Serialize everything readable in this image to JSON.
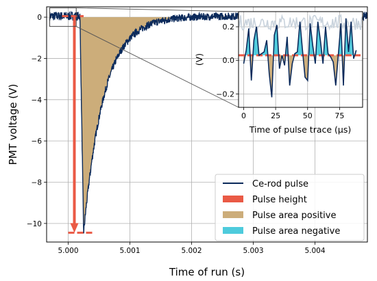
{
  "chart_data": [
    {
      "type": "line",
      "xlabel": "Time of run (s)",
      "ylabel": "PMT voltage (V)",
      "xlim": [
        4.99965,
        5.00485
      ],
      "ylim": [
        -10.9,
        0.5
      ],
      "xticks": [
        5.0,
        5.001,
        5.002,
        5.003,
        5.004
      ],
      "xtick_labels": [
        "5.000",
        "5.001",
        "5.002",
        "5.003",
        "5.004"
      ],
      "yticks": [
        0,
        -2,
        -4,
        -6,
        -8,
        -10
      ],
      "ytick_labels": [
        "0",
        "−2",
        "−4",
        "−6",
        "−8",
        "−10"
      ],
      "grid": true,
      "baseline_noise_y": 0.05,
      "pulse_start_x": 5.00019,
      "pulse_peak_x": 5.00025,
      "pulse_peak_y": -10.45,
      "decay_tau_s": 0.00033,
      "pulse_height": {
        "x": 5.0001,
        "y_top": 0.05,
        "y_bottom": -10.45,
        "baseline_x": [
          4.9999,
          5.00025
        ],
        "floor_x": [
          5.0,
          5.0004
        ]
      },
      "series": [
        {
          "name": "Ce-rod pulse",
          "color": "#0b2a5b",
          "style": "line"
        },
        {
          "name": "Pulse height",
          "color": "#ea5a45",
          "style": "patch"
        },
        {
          "name": "Pulse area positive",
          "color": "#ccad7a",
          "style": "patch"
        },
        {
          "name": "Pulse area negative",
          "color": "#4ecbdc",
          "style": "patch"
        }
      ],
      "zoom_box": {
        "x": [
          4.9997,
          5.00013
        ],
        "y": [
          -0.45,
          0.45
        ]
      },
      "legend_position": "lower-right"
    },
    {
      "type": "line",
      "xlabel": "Time of pulse trace (μs)",
      "ylabel": "(V)",
      "xlim": [
        -4,
        93
      ],
      "ylim": [
        -0.28,
        0.29
      ],
      "xticks": [
        0,
        25,
        50,
        75
      ],
      "xtick_labels": [
        "0",
        "25",
        "50",
        "75"
      ],
      "yticks": [
        -0.2,
        0.0,
        0.2
      ],
      "ytick_labels": [
        "−0.2",
        "0.0",
        "0.2"
      ],
      "grid": true,
      "baseline_y": 0.03,
      "x": [
        0,
        2,
        4,
        6,
        8,
        10,
        12,
        14,
        16,
        18,
        20,
        22,
        24,
        26,
        28,
        30,
        32,
        34,
        36,
        38,
        40,
        42,
        44,
        46,
        48,
        50,
        52,
        54,
        56,
        58,
        60,
        62,
        64,
        66,
        68,
        70,
        72,
        74,
        76,
        78,
        80,
        82,
        84,
        86,
        88
      ],
      "y": [
        -0.02,
        0.06,
        0.19,
        -0.12,
        0.12,
        0.2,
        0.03,
        0.04,
        0.05,
        0.12,
        -0.08,
        -0.22,
        0.15,
        0.21,
        -0.05,
        0.03,
        -0.03,
        0.14,
        -0.15,
        -0.02,
        0.04,
        0.05,
        0.23,
        0.06,
        -0.1,
        -0.12,
        0.22,
        0.09,
        -0.02,
        0.23,
        0.12,
        -0.02,
        0.2,
        0.04,
        0.02,
        -0.01,
        -0.15,
        0.03,
        0.22,
        -0.15,
        0.25,
        0.05,
        0.23,
        0.01,
        0.06
      ],
      "background_trace_y_range": [
        0.18,
        0.27
      ]
    }
  ]
}
